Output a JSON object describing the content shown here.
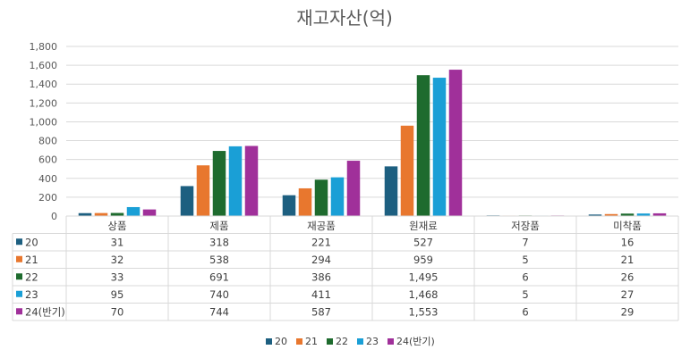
{
  "chart_data": {
    "type": "bar",
    "title": "재고자산(억)",
    "categories": [
      "상품",
      "제품",
      "재공품",
      "원재료",
      "저장품",
      "미착품"
    ],
    "ylim": [
      0,
      1800
    ],
    "y_ticks": [
      "0",
      "200",
      "400",
      "600",
      "800",
      "1,000",
      "1,200",
      "1,400",
      "1,600",
      "1,800"
    ],
    "grid": true,
    "legend_position": "bottom",
    "data_table": true,
    "series": [
      {
        "name": "20",
        "color": "#1d5f80",
        "values": [
          31,
          318,
          221,
          527,
          7,
          16
        ],
        "labels": [
          "31",
          "318",
          "221",
          "527",
          "7",
          "16"
        ]
      },
      {
        "name": "21",
        "color": "#e8772e",
        "values": [
          32,
          538,
          294,
          959,
          5,
          21
        ],
        "labels": [
          "32",
          "538",
          "294",
          "959",
          "5",
          "21"
        ]
      },
      {
        "name": "22",
        "color": "#1e6b2e",
        "values": [
          33,
          691,
          386,
          1495,
          6,
          26
        ],
        "labels": [
          "33",
          "691",
          "386",
          "1,495",
          "6",
          "26"
        ]
      },
      {
        "name": "23",
        "color": "#1a9fd6",
        "values": [
          95,
          740,
          411,
          1468,
          5,
          27
        ],
        "labels": [
          "95",
          "740",
          "411",
          "1,468",
          "5",
          "27"
        ]
      },
      {
        "name": "24(반기)",
        "color": "#a0309a",
        "values": [
          70,
          744,
          587,
          1553,
          6,
          29
        ],
        "labels": [
          "70",
          "744",
          "587",
          "1,553",
          "6",
          "29"
        ]
      }
    ]
  }
}
